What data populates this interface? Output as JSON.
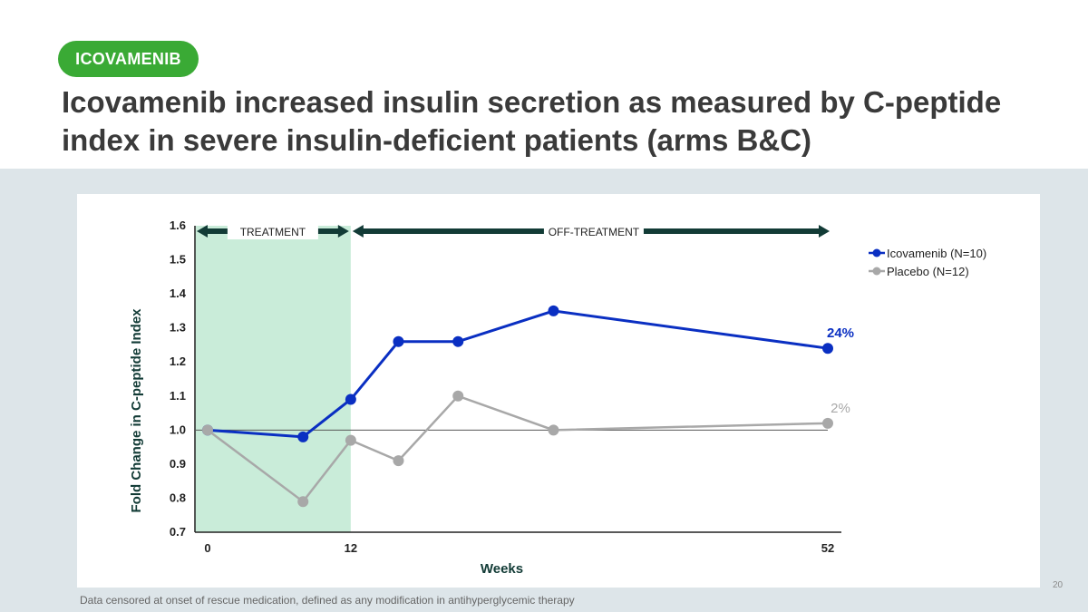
{
  "header": {
    "tag_label": "ICOVAMENIB",
    "title_line1": "Icovamenib increased insulin secretion as measured by C-peptide",
    "title_line2": "index in severe insulin-deficient patients (arms B&C)"
  },
  "footer": {
    "footnote": "Data censored at onset of rescue medication, defined as any modification in antihyperglycemic therapy",
    "page_number": "20"
  },
  "colors": {
    "tag": "#3aaa35",
    "title": "#3a3a3a",
    "band": "#dde5e9",
    "treatment_region": "#c9ecd9",
    "arrow": "#123b36",
    "icovamenib": "#0a2fc2",
    "placebo": "#a8a8a8"
  },
  "chart_data": {
    "type": "line",
    "xlabel": "Weeks",
    "ylabel": "Fold Change in C-peptide Index",
    "ylim": [
      0.7,
      1.6
    ],
    "xlim": [
      0,
      52
    ],
    "yticks": [
      0.7,
      0.8,
      0.9,
      1.0,
      1.1,
      1.2,
      1.3,
      1.4,
      1.5,
      1.6
    ],
    "ytick_labels": [
      "0.7",
      "0.8",
      "0.9",
      "1.0",
      "1.1",
      "1.2",
      "1.3",
      "1.4",
      "1.5",
      "1.6"
    ],
    "xticks": [
      0,
      12,
      52
    ],
    "xtick_labels": [
      "0",
      "12",
      "52"
    ],
    "reference_line": 1.0,
    "treatment_region": {
      "start": 0,
      "end": 12,
      "label": "TREATMENT"
    },
    "offtreatment_region": {
      "start": 12,
      "end": 52,
      "label": "OFF-TREATMENT"
    },
    "legend": {
      "position": "top-right"
    },
    "series": [
      {
        "name": "Icovamenib (N=10)",
        "color": "#0a2fc2",
        "x": [
          0,
          8,
          12,
          16,
          21,
          29,
          52
        ],
        "values": [
          1.0,
          0.98,
          1.09,
          1.26,
          1.26,
          1.35,
          1.24
        ],
        "end_label": "24%"
      },
      {
        "name": "Placebo (N=12)",
        "color": "#a8a8a8",
        "x": [
          0,
          8,
          12,
          16,
          21,
          29,
          52
        ],
        "values": [
          1.0,
          0.79,
          0.97,
          0.91,
          1.1,
          1.0,
          1.02
        ],
        "end_label": "2%"
      }
    ]
  }
}
